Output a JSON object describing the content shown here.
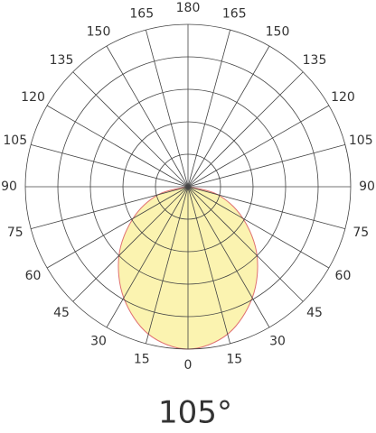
{
  "chart_data": {
    "type": "polar",
    "title": "105°",
    "angle_ticks": [
      0,
      15,
      30,
      45,
      60,
      75,
      90,
      105,
      120,
      135,
      150,
      165,
      180
    ],
    "rlim": [
      0,
      100
    ],
    "rticks": [
      20,
      40,
      60,
      80,
      100
    ],
    "grid": true,
    "series": [
      {
        "color": "#fbf3b0",
        "angles": [
          -90,
          -75,
          -60,
          -45,
          -30,
          -15,
          0,
          15,
          30,
          45,
          60,
          75,
          90
        ],
        "values": [
          0,
          19,
          39,
          60,
          79,
          94,
          100,
          94,
          79,
          60,
          39,
          19,
          0
        ]
      }
    ]
  }
}
